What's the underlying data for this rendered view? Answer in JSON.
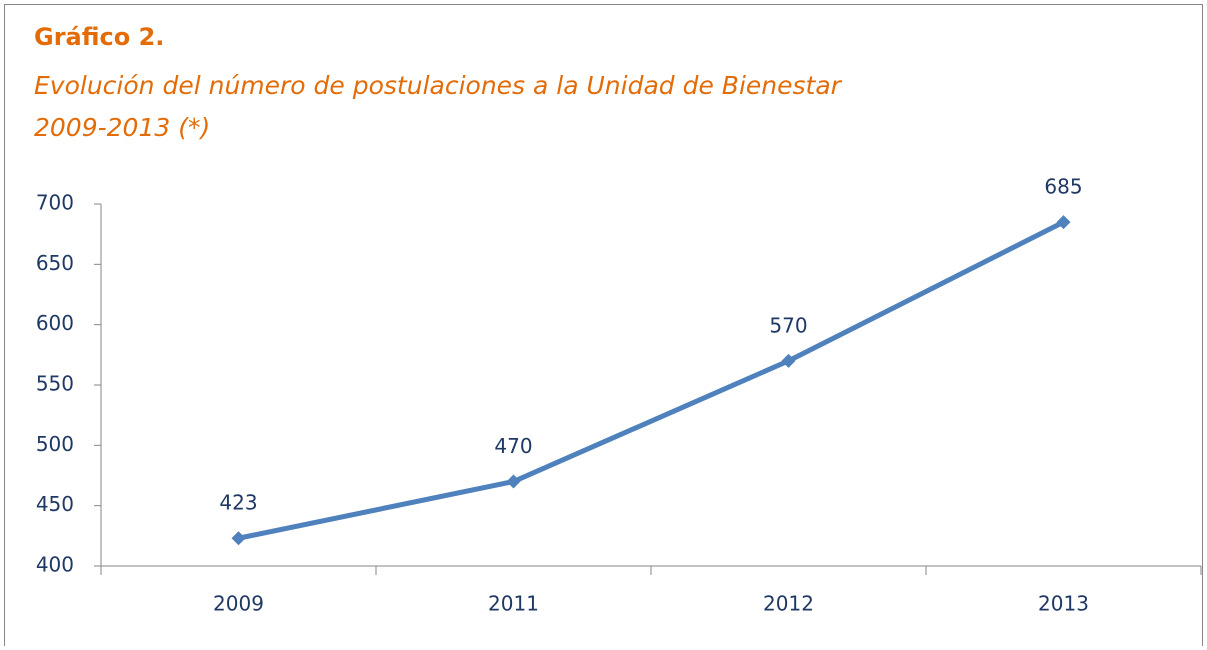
{
  "chart_data": {
    "type": "line",
    "title": "Gráfico 2.",
    "subtitle": [
      "Evolución del número de postulaciones a la Unidad de Bienestar",
      "2009-2013 (*)"
    ],
    "categories": [
      "2009",
      "2011",
      "2012",
      "2013"
    ],
    "values": [
      423,
      470,
      570,
      685
    ],
    "color": "#4f81bd",
    "ylim": [
      400,
      700
    ],
    "yticks": [
      400,
      450,
      500,
      550,
      600,
      650,
      700
    ],
    "grid": false
  }
}
